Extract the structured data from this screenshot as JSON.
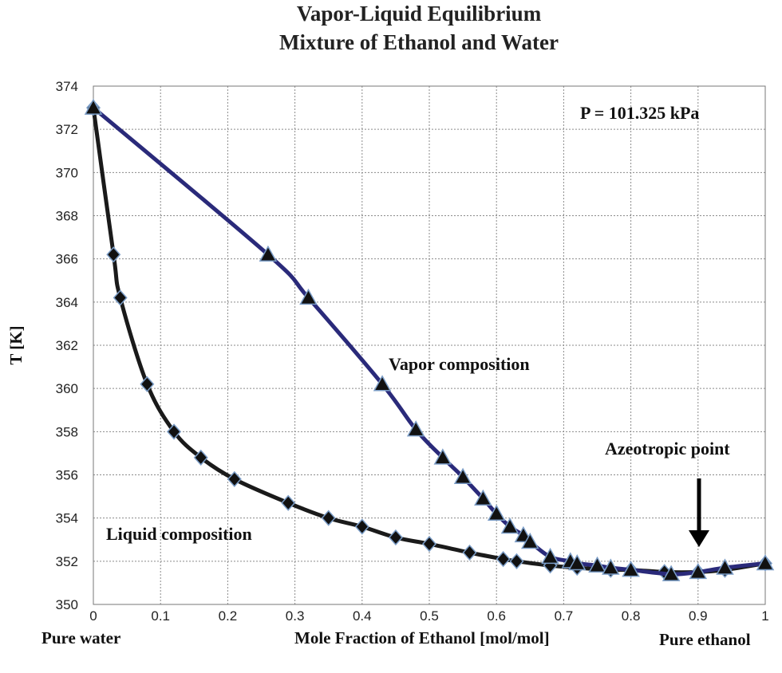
{
  "chart_data": {
    "type": "line",
    "title": "Vapor-Liquid Equilibrium",
    "subtitle": "Mixture of Ethanol and Water",
    "xlabel": "Mole Fraction of Ethanol [mol/mol]",
    "ylabel": "T  [K]",
    "xlim": [
      0,
      1
    ],
    "ylim": [
      350,
      374
    ],
    "grid": true,
    "x_ticks": [
      "0",
      "0.1",
      "0.2",
      "0.3",
      "0.4",
      "0.5",
      "0.6",
      "0.7",
      "0.8",
      "0.9",
      "1"
    ],
    "y_ticks": [
      "350",
      "352",
      "354",
      "356",
      "358",
      "360",
      "362",
      "364",
      "366",
      "368",
      "370",
      "372",
      "374"
    ],
    "series": [
      {
        "marker": "diamond",
        "line_color": "#1a1a1a",
        "x": [
          0,
          0.03,
          0.04,
          0.08,
          0.12,
          0.16,
          0.21,
          0.29,
          0.35,
          0.4,
          0.45,
          0.5,
          0.56,
          0.61,
          0.63,
          0.68,
          0.72,
          0.77,
          0.8,
          0.85,
          0.9,
          0.94,
          1.0
        ],
        "y": [
          373.0,
          366.2,
          364.2,
          360.2,
          358.0,
          356.8,
          355.8,
          354.7,
          354.0,
          353.6,
          353.1,
          352.8,
          352.4,
          352.1,
          352.0,
          351.8,
          351.7,
          351.6,
          351.6,
          351.5,
          351.5,
          351.6,
          351.9
        ]
      },
      {
        "marker": "triangle",
        "line_color": "#2a2a7a",
        "x": [
          0,
          0.26,
          0.32,
          0.43,
          0.48,
          0.52,
          0.55,
          0.58,
          0.6,
          0.62,
          0.64,
          0.65,
          0.68,
          0.71,
          0.72,
          0.75,
          0.77,
          0.8,
          0.86,
          0.9,
          0.94,
          1.0
        ],
        "y": [
          373.0,
          366.2,
          364.2,
          360.2,
          358.1,
          356.8,
          355.9,
          354.9,
          354.2,
          353.6,
          353.2,
          352.9,
          352.2,
          352.0,
          351.9,
          351.8,
          351.7,
          351.6,
          351.4,
          351.5,
          351.7,
          351.9
        ]
      }
    ],
    "annotations": {
      "pressure": "P = 101.325 kPa",
      "vapor": "Vapor composition",
      "liquid": "Liquid composition",
      "azeotrope": "Azeotropic point",
      "left_end": "Pure water",
      "right_end": "Pure ethanol"
    }
  }
}
